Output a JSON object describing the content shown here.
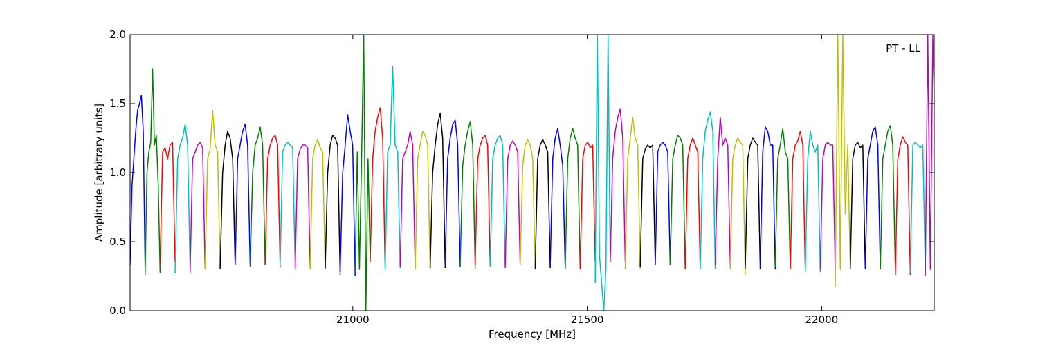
{
  "chart_data": {
    "type": "line",
    "title": "",
    "annotation": "PT - LL",
    "xlabel": "Frequency [MHz]",
    "ylabel": "Amplitude [arbitrary units]",
    "xlim": [
      20525,
      22240
    ],
    "ylim": [
      0.0,
      2.0
    ],
    "xticks": [
      21000,
      21500,
      22000
    ],
    "xtick_labels": [
      "21000",
      "21500",
      "22000"
    ],
    "yticks": [
      0.0,
      0.5,
      1.0,
      1.5,
      2.0
    ],
    "ytick_labels": [
      "0.0",
      "0.5",
      "1.0",
      "1.5",
      "2.0"
    ],
    "grid": false,
    "legend": "none",
    "colors": [
      "#0000ff",
      "#008000",
      "#ff0000",
      "#00bfbf",
      "#bf00bf",
      "#bfbf00",
      "#000000"
    ],
    "channel_width_mhz": 32,
    "channel_starts_mhz": [
      20525,
      20557,
      20589,
      20621,
      20653,
      20685,
      20717,
      20749,
      20781,
      20813,
      20845,
      20877,
      20909,
      20941,
      20973,
      21005,
      21037,
      21069,
      21101,
      21133,
      21165,
      21197,
      21229,
      21261,
      21293,
      21325,
      21357,
      21389,
      21421,
      21453,
      21485,
      21517,
      21549,
      21581,
      21613,
      21645,
      21677,
      21709,
      21741,
      21773,
      21805,
      21837,
      21869,
      21901,
      21933,
      21965,
      21997,
      22029,
      22061,
      22093,
      22125,
      22157,
      22189,
      22221
    ],
    "series": [
      {
        "values": [
          0.33,
          0.9,
          1.1,
          1.3,
          1.45,
          1.5,
          1.56,
          1.3,
          0.32
        ]
      },
      {
        "values": [
          0.26,
          1.0,
          1.15,
          1.22,
          1.75,
          1.2,
          1.27,
          0.9,
          0.27
        ]
      },
      {
        "values": [
          0.33,
          1.15,
          1.18,
          1.1,
          1.2,
          1.22,
          0.35
        ]
      },
      {
        "values": [
          0.27,
          1.1,
          1.2,
          1.25,
          1.35,
          1.2,
          0.3
        ]
      },
      {
        "values": [
          0.27,
          1.1,
          1.15,
          1.2,
          1.22,
          1.18,
          0.3
        ]
      },
      {
        "values": [
          0.3,
          1.1,
          1.17,
          1.45,
          1.2,
          1.15,
          0.3
        ]
      },
      {
        "values": [
          0.3,
          1.0,
          1.2,
          1.3,
          1.25,
          1.1,
          0.33
        ]
      },
      {
        "values": [
          0.33,
          1.1,
          1.2,
          1.3,
          1.35,
          1.2,
          0.33
        ]
      },
      {
        "values": [
          0.32,
          1.0,
          1.2,
          1.25,
          1.33,
          1.2,
          0.34
        ]
      },
      {
        "values": [
          0.33,
          1.1,
          1.2,
          1.25,
          1.27,
          1.2,
          0.32
        ]
      },
      {
        "values": [
          0.33,
          1.15,
          1.2,
          1.22,
          1.2,
          1.18,
          0.32
        ]
      },
      {
        "values": [
          0.3,
          1.1,
          1.17,
          1.2,
          1.2,
          1.18,
          0.31
        ]
      },
      {
        "values": [
          0.3,
          1.1,
          1.2,
          1.24,
          1.18,
          1.15,
          0.31
        ]
      },
      {
        "values": [
          0.3,
          1.0,
          1.2,
          1.27,
          1.25,
          1.2,
          0.26
        ]
      },
      {
        "values": [
          0.28,
          1.0,
          1.2,
          1.42,
          1.3,
          1.2,
          0.25
        ]
      },
      {
        "values": [
          0.3,
          1.15,
          0.3,
          1.1,
          2.0,
          0.0,
          1.1,
          0.38
        ]
      },
      {
        "values": [
          0.35,
          1.1,
          1.3,
          1.4,
          1.47,
          1.25,
          0.3
        ]
      },
      {
        "values": [
          0.3,
          1.15,
          1.2,
          1.77,
          1.2,
          1.15,
          0.31
        ]
      },
      {
        "values": [
          0.32,
          1.1,
          1.15,
          1.2,
          1.3,
          1.2,
          0.31
        ]
      },
      {
        "values": [
          0.3,
          1.1,
          1.2,
          1.3,
          1.27,
          1.2,
          0.3
        ]
      },
      {
        "values": [
          0.31,
          1.0,
          1.2,
          1.35,
          1.43,
          1.25,
          0.31
        ]
      },
      {
        "values": [
          0.32,
          1.1,
          1.25,
          1.35,
          1.38,
          1.2,
          0.32
        ]
      },
      {
        "values": [
          0.32,
          1.05,
          1.2,
          1.3,
          1.37,
          1.2,
          0.3
        ]
      },
      {
        "values": [
          0.33,
          1.1,
          1.2,
          1.25,
          1.27,
          1.2,
          0.32
        ]
      },
      {
        "values": [
          0.32,
          1.1,
          1.2,
          1.25,
          1.27,
          1.2,
          0.33
        ]
      },
      {
        "values": [
          0.31,
          1.1,
          1.2,
          1.23,
          1.2,
          1.15,
          0.33
        ]
      },
      {
        "values": [
          0.33,
          1.05,
          1.2,
          1.24,
          1.2,
          1.1,
          0.32
        ]
      },
      {
        "values": [
          0.3,
          1.1,
          1.2,
          1.24,
          1.2,
          1.15,
          0.31
        ]
      },
      {
        "values": [
          0.32,
          1.1,
          1.25,
          1.32,
          1.2,
          1.05,
          0.3
        ]
      },
      {
        "values": [
          0.3,
          1.1,
          1.25,
          1.32,
          1.25,
          1.2,
          0.3
        ]
      },
      {
        "values": [
          0.3,
          1.1,
          1.2,
          1.22,
          1.18,
          1.2,
          0.35
        ]
      },
      {
        "values": [
          0.2,
          2.0,
          0.4,
          0.2,
          0.0,
          0.3,
          2.0,
          0.35
        ]
      },
      {
        "values": [
          0.35,
          1.1,
          1.3,
          1.4,
          1.46,
          1.25,
          0.35
        ]
      },
      {
        "values": [
          0.3,
          1.1,
          1.25,
          1.4,
          1.25,
          1.2,
          0.3
        ]
      },
      {
        "values": [
          0.32,
          1.1,
          1.17,
          1.2,
          1.18,
          1.2,
          0.33
        ]
      },
      {
        "values": [
          0.33,
          1.15,
          1.2,
          1.22,
          1.2,
          1.15,
          0.33
        ]
      },
      {
        "values": [
          0.33,
          1.1,
          1.2,
          1.27,
          1.25,
          1.2,
          0.3
        ]
      },
      {
        "values": [
          0.3,
          1.1,
          1.2,
          1.25,
          1.2,
          1.15,
          0.3
        ]
      },
      {
        "values": [
          0.3,
          1.1,
          1.3,
          1.38,
          1.44,
          1.3,
          0.3
        ]
      },
      {
        "values": [
          0.33,
          1.1,
          1.4,
          1.2,
          1.25,
          1.2,
          0.32
        ]
      },
      {
        "values": [
          0.3,
          1.1,
          1.2,
          1.25,
          1.22,
          1.2,
          0.26
        ]
      },
      {
        "values": [
          0.3,
          1.1,
          1.2,
          1.25,
          1.22,
          1.2,
          0.3
        ]
      },
      {
        "values": [
          0.3,
          1.15,
          1.33,
          1.3,
          1.2,
          1.2,
          0.3
        ]
      },
      {
        "values": [
          0.32,
          1.1,
          1.2,
          1.32,
          1.15,
          1.1,
          0.3
        ]
      },
      {
        "values": [
          0.3,
          1.1,
          1.2,
          1.23,
          1.3,
          1.2,
          0.3
        ]
      },
      {
        "values": [
          0.28,
          1.1,
          1.3,
          1.2,
          1.15,
          1.2,
          0.28
        ]
      },
      {
        "values": [
          0.3,
          1.1,
          1.2,
          1.22,
          1.2,
          1.2,
          0.3
        ]
      },
      {
        "values": [
          0.17,
          2.0,
          0.3,
          2.0,
          0.7,
          1.2,
          0.3
        ]
      },
      {
        "values": [
          0.3,
          1.1,
          1.2,
          1.22,
          1.18,
          1.2,
          0.3
        ]
      },
      {
        "values": [
          0.3,
          1.1,
          1.2,
          1.3,
          1.33,
          1.2,
          0.3
        ]
      },
      {
        "values": [
          0.3,
          1.1,
          1.2,
          1.3,
          1.34,
          1.2,
          0.3
        ]
      },
      {
        "values": [
          0.26,
          1.1,
          1.2,
          1.26,
          1.22,
          1.2,
          0.26
        ]
      },
      {
        "values": [
          0.27,
          1.2,
          1.22,
          1.2,
          1.18,
          1.2,
          0.3
        ]
      },
      {
        "values": [
          0.25,
          2.0,
          0.3,
          2.0,
          1.2,
          1.3,
          0.7
        ]
      }
    ]
  }
}
